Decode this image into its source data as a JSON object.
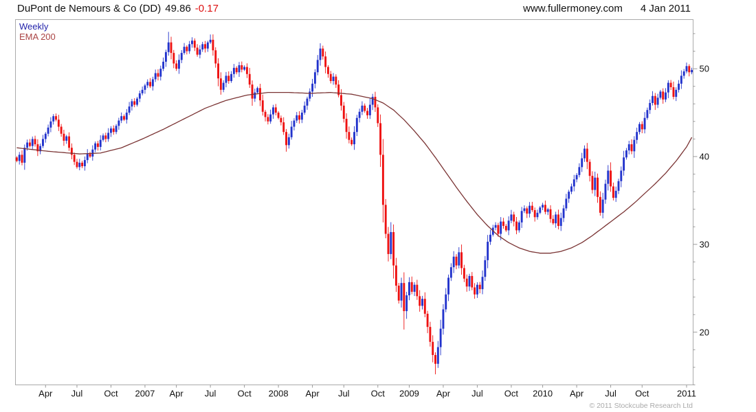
{
  "header": {
    "title": "DuPont de Nemours & Co (DD)",
    "price": "49.86",
    "change": "-0.17",
    "site": "www.fullermoney.com",
    "date": "4 Jan 2011"
  },
  "legend": {
    "timeframe": "Weekly",
    "overlay": "EMA 200"
  },
  "footer": {
    "copyright": "© 2011 Stockcube Research Ltd"
  },
  "chart_data": {
    "type": "candlestick",
    "title": "DuPont de Nemours & Co (DD) weekly candles with 200-period EMA",
    "symbol": "DD",
    "timeframe": "weekly",
    "last_price": 49.86,
    "change": -0.17,
    "ylim": [
      14,
      55.6
    ],
    "y_ticks": [
      20,
      30,
      40,
      50
    ],
    "y_minor_step": 2,
    "x_ticks": [
      {
        "week": 11,
        "label": "Apr"
      },
      {
        "week": 23,
        "label": "Jul"
      },
      {
        "week": 36,
        "label": "Oct"
      },
      {
        "week": 49,
        "label": "2007"
      },
      {
        "week": 61,
        "label": "Apr"
      },
      {
        "week": 74,
        "label": "Jul"
      },
      {
        "week": 87,
        "label": "Oct"
      },
      {
        "week": 100,
        "label": "2008"
      },
      {
        "week": 113,
        "label": "Apr"
      },
      {
        "week": 125,
        "label": "Jul"
      },
      {
        "week": 138,
        "label": "Oct"
      },
      {
        "week": 150,
        "label": "2009"
      },
      {
        "week": 163,
        "label": "Apr"
      },
      {
        "week": 176,
        "label": "Jul"
      },
      {
        "week": 189,
        "label": "Oct"
      },
      {
        "week": 201,
        "label": "2010"
      },
      {
        "week": 214,
        "label": "Apr"
      },
      {
        "week": 227,
        "label": "Jul"
      },
      {
        "week": 239,
        "label": "Oct"
      },
      {
        "week": 256,
        "label": "2011"
      }
    ],
    "first_open": 39.9,
    "closes": [
      39.5,
      40.2,
      39.3,
      41.0,
      41.6,
      41.2,
      42.0,
      41.4,
      40.6,
      41.2,
      42.0,
      42.6,
      43.3,
      44.0,
      44.6,
      44.2,
      43.4,
      42.6,
      41.8,
      42.3,
      41.0,
      40.2,
      39.4,
      38.8,
      39.3,
      38.9,
      39.6,
      40.3,
      40.0,
      40.8,
      41.5,
      41.1,
      41.9,
      42.4,
      42.0,
      42.7,
      43.2,
      42.8,
      43.5,
      44.1,
      44.6,
      44.2,
      45.0,
      45.7,
      46.3,
      45.9,
      46.6,
      47.2,
      47.6,
      48.1,
      48.5,
      48.0,
      48.8,
      49.5,
      49.1,
      50.0,
      50.8,
      51.9,
      53.0,
      51.8,
      50.6,
      50.0,
      51.0,
      51.8,
      52.5,
      52.0,
      52.8,
      53.2,
      52.4,
      51.6,
      52.2,
      52.8,
      52.3,
      53.0,
      53.3,
      52.1,
      50.6,
      48.9,
      47.6,
      48.4,
      49.2,
      48.6,
      49.4,
      50.1,
      49.6,
      50.4,
      49.9,
      50.2,
      49.4,
      48.2,
      46.6,
      47.3,
      47.8,
      46.4,
      45.1,
      44.5,
      44.0,
      44.8,
      45.6,
      45.0,
      44.4,
      43.9,
      42.8,
      41.3,
      42.2,
      43.4,
      44.1,
      44.7,
      44.2,
      45.0,
      45.8,
      46.6,
      47.4,
      48.3,
      49.6,
      51.0,
      52.3,
      51.4,
      50.2,
      49.4,
      48.6,
      49.1,
      48.2,
      47.0,
      45.8,
      44.3,
      42.8,
      41.9,
      41.4,
      42.8,
      44.4,
      45.1,
      45.8,
      45.2,
      44.7,
      45.9,
      46.8,
      45.6,
      43.8,
      40.2,
      34.5,
      31.2,
      28.9,
      31.4,
      27.6,
      25.3,
      23.6,
      25.6,
      22.4,
      24.2,
      25.7,
      24.6,
      25.4,
      24.1,
      23.0,
      23.8,
      22.1,
      20.6,
      18.9,
      17.4,
      16.4,
      18.3,
      20.4,
      22.6,
      24.3,
      26.2,
      27.4,
      28.6,
      27.6,
      29.1,
      27.3,
      26.1,
      25.2,
      26.4,
      25.1,
      24.3,
      25.4,
      24.9,
      26.3,
      28.2,
      30.3,
      31.1,
      31.9,
      32.2,
      31.2,
      32.6,
      32.1,
      31.6,
      32.7,
      33.4,
      32.6,
      31.6,
      32.5,
      33.8,
      34.1,
      33.5,
      34.4,
      33.9,
      33.1,
      33.6,
      34.2,
      34.5,
      33.7,
      34.0,
      32.9,
      32.4,
      33.4,
      32.1,
      33.0,
      34.1,
      35.2,
      36.0,
      36.6,
      37.4,
      37.9,
      38.8,
      39.8,
      40.9,
      39.4,
      37.8,
      36.2,
      37.6,
      35.4,
      33.6,
      35.1,
      36.9,
      38.4,
      36.6,
      35.3,
      36.1,
      37.2,
      38.4,
      39.9,
      40.7,
      41.4,
      40.6,
      41.9,
      42.8,
      43.7,
      43.1,
      44.4,
      45.3,
      46.1,
      46.9,
      45.9,
      46.7,
      47.4,
      46.5,
      47.3,
      48.4,
      47.9,
      46.8,
      47.6,
      48.3,
      49.2,
      49.7,
      50.3,
      49.6,
      49.86
    ],
    "ema200_anchors": [
      [
        0,
        41.0
      ],
      [
        12,
        40.6
      ],
      [
        24,
        40.3
      ],
      [
        32,
        40.4
      ],
      [
        40,
        41.0
      ],
      [
        48,
        42.0
      ],
      [
        56,
        43.1
      ],
      [
        64,
        44.3
      ],
      [
        72,
        45.5
      ],
      [
        80,
        46.4
      ],
      [
        88,
        47.0
      ],
      [
        96,
        47.3
      ],
      [
        104,
        47.3
      ],
      [
        112,
        47.2
      ],
      [
        120,
        47.3
      ],
      [
        128,
        47.1
      ],
      [
        136,
        46.6
      ],
      [
        140,
        46.1
      ],
      [
        144,
        45.3
      ],
      [
        148,
        44.2
      ],
      [
        152,
        42.9
      ],
      [
        156,
        41.5
      ],
      [
        160,
        39.9
      ],
      [
        164,
        38.2
      ],
      [
        168,
        36.5
      ],
      [
        172,
        34.9
      ],
      [
        176,
        33.4
      ],
      [
        180,
        32.1
      ],
      [
        184,
        31.0
      ],
      [
        188,
        30.2
      ],
      [
        192,
        29.6
      ],
      [
        196,
        29.2
      ],
      [
        200,
        29.0
      ],
      [
        204,
        29.0
      ],
      [
        208,
        29.2
      ],
      [
        212,
        29.6
      ],
      [
        216,
        30.2
      ],
      [
        220,
        31.0
      ],
      [
        224,
        31.9
      ],
      [
        228,
        32.8
      ],
      [
        232,
        33.7
      ],
      [
        236,
        34.7
      ],
      [
        240,
        35.8
      ],
      [
        244,
        36.9
      ],
      [
        248,
        38.1
      ],
      [
        252,
        39.5
      ],
      [
        256,
        41.1
      ],
      [
        258,
        42.2
      ]
    ],
    "wick_low_overrides": {
      "140": 32.5,
      "148": 20.3,
      "160": 15.2
    },
    "wick_high_overrides": {
      "58": 54.2,
      "74": 53.9,
      "116": 52.9,
      "256": 50.7
    },
    "colors": {
      "up": "#2233cc",
      "down": "#ee1111",
      "ema": "#7a3333",
      "axis": "#999999",
      "border": "#aaaaaa",
      "label": "#111111",
      "change": "#dd1111",
      "legend_weekly": "#2222aa",
      "legend_ema": "#aa4444"
    }
  }
}
